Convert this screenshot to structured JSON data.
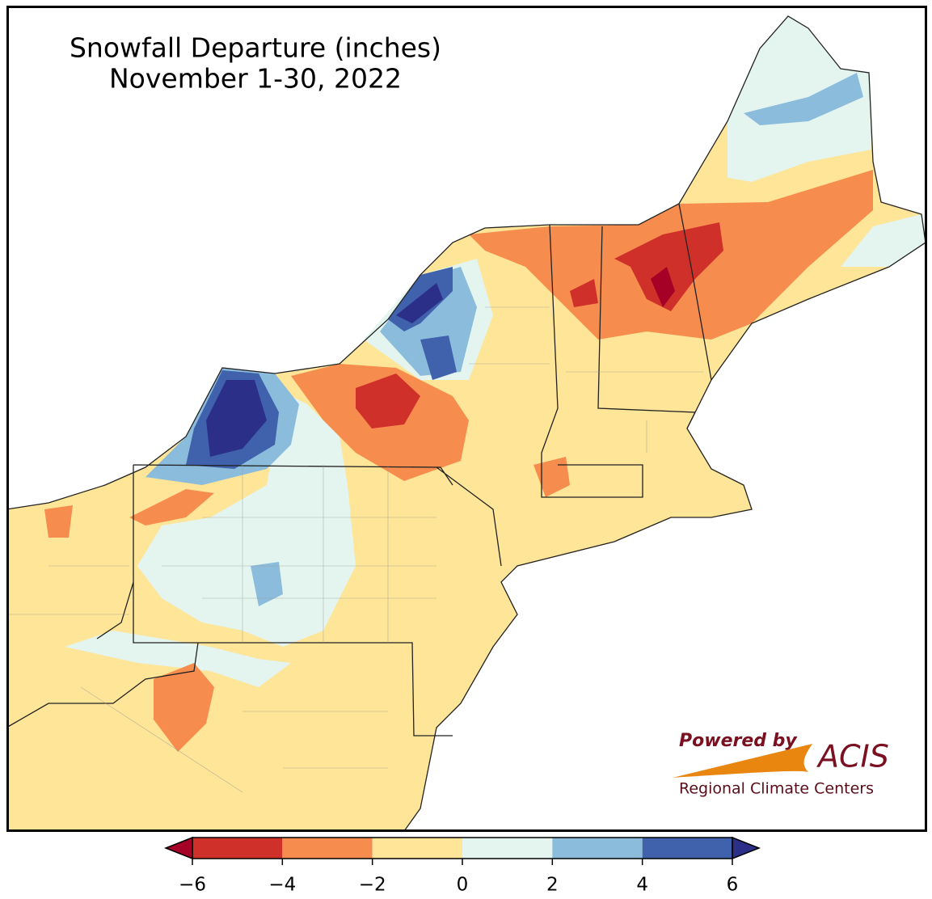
{
  "title": [
    "Snowfall Departure (inches)",
    "November 1-30, 2022"
  ],
  "colorbar": {
    "lim": [
      -6,
      6
    ],
    "ticks": [
      {
        "value": -6,
        "label": "−6"
      },
      {
        "value": -4,
        "label": "−4"
      },
      {
        "value": -2,
        "label": "−2"
      },
      0,
      2,
      4,
      6
    ],
    "bins": [
      -6,
      -4,
      -2,
      0,
      2,
      4,
      6
    ],
    "colors": [
      "#d0302a",
      "#f68c4e",
      "#fee597",
      "#e4f4ee",
      "#8bbcdc",
      "#4061ac"
    ],
    "under_color": "#a50026",
    "over_color": "#2c2f88"
  },
  "logo": {
    "powered_by": "Powered by",
    "name": "ACIS",
    "subtitle": "Regional Climate Centers"
  }
}
